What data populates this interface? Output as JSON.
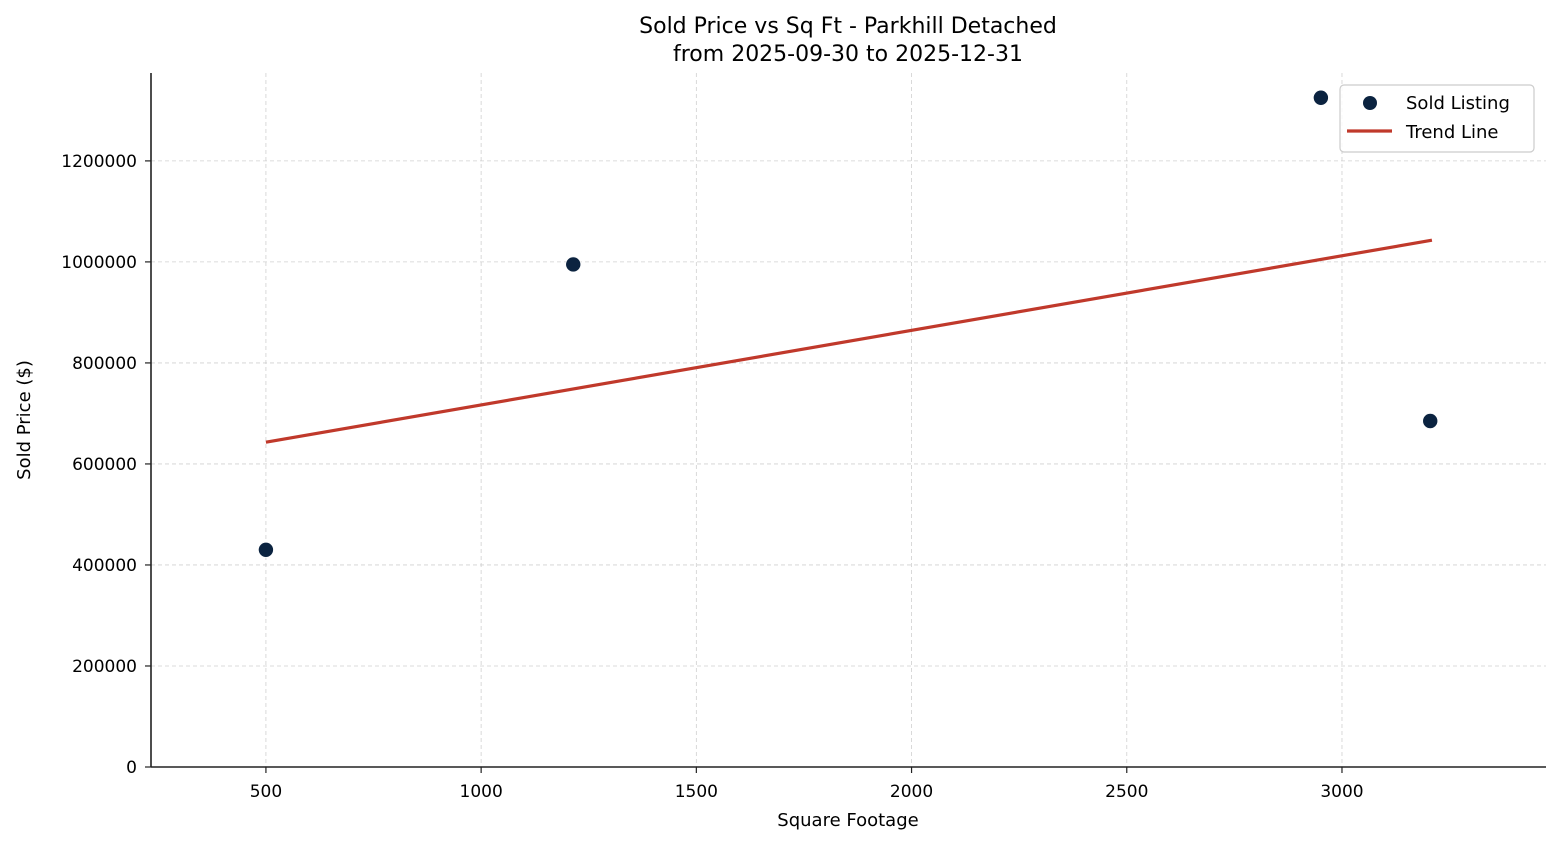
{
  "chart_data": {
    "type": "scatter",
    "title": "Sold Price vs Sq Ft - Parkhill Detached",
    "subtitle": "from 2025-09-30 to 2025-12-31",
    "xlabel": "Square Footage",
    "ylabel": "Sold Price ($)",
    "xlim": [
      233,
      3474
    ],
    "ylim": [
      0,
      1374000
    ],
    "x_ticks": [
      500,
      1000,
      1500,
      2000,
      2500,
      3000
    ],
    "y_ticks": [
      0,
      200000,
      400000,
      600000,
      800000,
      1000000,
      1200000
    ],
    "x_tick_labels": [
      "500",
      "1000",
      "1500",
      "2000",
      "2500",
      "3000"
    ],
    "y_tick_labels": [
      "0",
      "200000",
      "400000",
      "600000",
      "800000",
      "1000000",
      "1200000"
    ],
    "grid": true,
    "legend_position": "upper right",
    "series": [
      {
        "name": "Sold Listing",
        "type": "scatter",
        "color": "#0b2340",
        "points": [
          {
            "x": 500,
            "y": 430000
          },
          {
            "x": 1214,
            "y": 995000
          },
          {
            "x": 2951,
            "y": 1325000
          },
          {
            "x": 3205,
            "y": 685000
          }
        ]
      },
      {
        "name": "Trend Line",
        "type": "line",
        "color": "#c0392b",
        "points": [
          {
            "x": 500,
            "y": 643000
          },
          {
            "x": 3209,
            "y": 1043000
          }
        ]
      }
    ]
  },
  "legend": {
    "items": [
      {
        "label": "Sold Listing",
        "kind": "marker",
        "color": "#0b2340"
      },
      {
        "label": "Trend Line",
        "kind": "line",
        "color": "#c0392b"
      }
    ]
  }
}
